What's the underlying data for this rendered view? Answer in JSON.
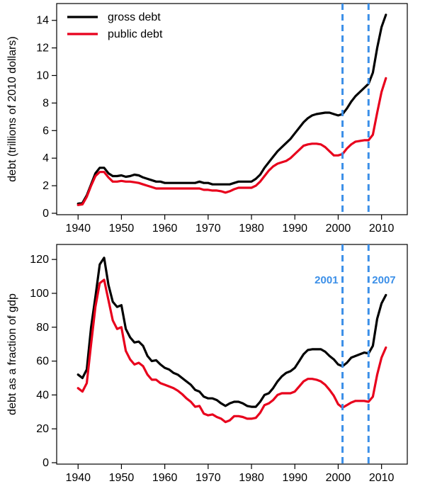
{
  "colors": {
    "gross": "#000000",
    "public": "#e8001c",
    "marker": "#3b8fe8",
    "axis": "#000000"
  },
  "chart_data": [
    {
      "type": "line",
      "title": "",
      "xlabel": "",
      "ylabel": "debt (trillions of 2010 dollars)",
      "xlim": [
        1938,
        2013
      ],
      "ylim": [
        0,
        14.5
      ],
      "xticks": [
        1940,
        1950,
        1960,
        1970,
        1980,
        1990,
        2000,
        2010
      ],
      "yticks": [
        0,
        2,
        4,
        6,
        8,
        10,
        12,
        14
      ],
      "grid": false,
      "legend_position": "top-left",
      "legend": [
        "gross debt",
        "public debt"
      ],
      "markers": [
        {
          "x": 2001,
          "label": ""
        },
        {
          "x": 2007,
          "label": ""
        }
      ],
      "series": [
        {
          "name": "gross debt",
          "color_key": "gross",
          "x": [
            1940,
            1941,
            1942,
            1943,
            1944,
            1945,
            1946,
            1947,
            1948,
            1949,
            1950,
            1951,
            1952,
            1953,
            1954,
            1955,
            1956,
            1957,
            1958,
            1959,
            1960,
            1961,
            1962,
            1963,
            1964,
            1965,
            1966,
            1967,
            1968,
            1969,
            1970,
            1971,
            1972,
            1973,
            1974,
            1975,
            1976,
            1977,
            1978,
            1979,
            1980,
            1981,
            1982,
            1983,
            1984,
            1985,
            1986,
            1987,
            1988,
            1989,
            1990,
            1991,
            1992,
            1993,
            1994,
            1995,
            1996,
            1997,
            1998,
            1999,
            2000,
            2001,
            2002,
            2003,
            2004,
            2005,
            2006,
            2007,
            2008,
            2009,
            2010,
            2011
          ],
          "values": [
            0.7,
            0.75,
            1.3,
            2.1,
            2.9,
            3.3,
            3.3,
            2.9,
            2.7,
            2.7,
            2.75,
            2.65,
            2.7,
            2.8,
            2.75,
            2.6,
            2.5,
            2.4,
            2.3,
            2.3,
            2.2,
            2.2,
            2.2,
            2.2,
            2.2,
            2.2,
            2.2,
            2.2,
            2.3,
            2.2,
            2.2,
            2.1,
            2.1,
            2.1,
            2.1,
            2.1,
            2.2,
            2.3,
            2.3,
            2.3,
            2.3,
            2.5,
            2.8,
            3.3,
            3.7,
            4.1,
            4.5,
            4.8,
            5.1,
            5.4,
            5.8,
            6.2,
            6.6,
            6.9,
            7.1,
            7.2,
            7.25,
            7.3,
            7.3,
            7.2,
            7.1,
            7.2,
            7.6,
            8.1,
            8.5,
            8.8,
            9.1,
            9.4,
            10.2,
            12.0,
            13.5,
            14.4
          ]
        },
        {
          "name": "public debt",
          "color_key": "public",
          "x": [
            1940,
            1941,
            1942,
            1943,
            1944,
            1945,
            1946,
            1947,
            1948,
            1949,
            1950,
            1951,
            1952,
            1953,
            1954,
            1955,
            1956,
            1957,
            1958,
            1959,
            1960,
            1961,
            1962,
            1963,
            1964,
            1965,
            1966,
            1967,
            1968,
            1969,
            1970,
            1971,
            1972,
            1973,
            1974,
            1975,
            1976,
            1977,
            1978,
            1979,
            1980,
            1981,
            1982,
            1983,
            1984,
            1985,
            1986,
            1987,
            1988,
            1989,
            1990,
            1991,
            1992,
            1993,
            1994,
            1995,
            1996,
            1997,
            1998,
            1999,
            2000,
            2001,
            2002,
            2003,
            2004,
            2005,
            2006,
            2007,
            2008,
            2009,
            2010,
            2011
          ],
          "values": [
            0.6,
            0.65,
            1.2,
            2.0,
            2.7,
            3.0,
            3.0,
            2.6,
            2.3,
            2.3,
            2.35,
            2.3,
            2.3,
            2.25,
            2.2,
            2.1,
            2.0,
            1.9,
            1.8,
            1.8,
            1.8,
            1.8,
            1.8,
            1.8,
            1.8,
            1.8,
            1.8,
            1.8,
            1.8,
            1.7,
            1.7,
            1.65,
            1.65,
            1.6,
            1.5,
            1.6,
            1.75,
            1.85,
            1.85,
            1.85,
            1.85,
            2.0,
            2.3,
            2.7,
            3.1,
            3.4,
            3.6,
            3.7,
            3.8,
            4.0,
            4.3,
            4.6,
            4.9,
            5.0,
            5.05,
            5.05,
            5.0,
            4.8,
            4.5,
            4.2,
            4.2,
            4.3,
            4.7,
            5.0,
            5.2,
            5.25,
            5.3,
            5.3,
            5.7,
            7.3,
            8.8,
            9.8
          ]
        }
      ]
    },
    {
      "type": "line",
      "title": "",
      "xlabel": "",
      "ylabel": "debt as a fraction of gdp",
      "xlim": [
        1938,
        2013
      ],
      "ylim": [
        0,
        123
      ],
      "xticks": [
        1940,
        1950,
        1960,
        1970,
        1980,
        1990,
        2000,
        2010
      ],
      "yticks": [
        0,
        20,
        40,
        60,
        80,
        100,
        120
      ],
      "grid": false,
      "markers": [
        {
          "x": 2001,
          "label": "2001"
        },
        {
          "x": 2007,
          "label": "2007"
        }
      ],
      "series": [
        {
          "name": "gross debt",
          "color_key": "gross",
          "x": [
            1940,
            1941,
            1942,
            1943,
            1944,
            1945,
            1946,
            1947,
            1948,
            1949,
            1950,
            1951,
            1952,
            1953,
            1954,
            1955,
            1956,
            1957,
            1958,
            1959,
            1960,
            1961,
            1962,
            1963,
            1964,
            1965,
            1966,
            1967,
            1968,
            1969,
            1970,
            1971,
            1972,
            1973,
            1974,
            1975,
            1976,
            1977,
            1978,
            1979,
            1980,
            1981,
            1982,
            1983,
            1984,
            1985,
            1986,
            1987,
            1988,
            1989,
            1990,
            1991,
            1992,
            1993,
            1994,
            1995,
            1996,
            1997,
            1998,
            1999,
            2000,
            2001,
            2002,
            2003,
            2004,
            2005,
            2006,
            2007,
            2008,
            2009,
            2010,
            2011
          ],
          "values": [
            52,
            50,
            55,
            80,
            98,
            117,
            121,
            105,
            95,
            92,
            93,
            79,
            74,
            71,
            71.5,
            69,
            63,
            60,
            60.5,
            58,
            56,
            55,
            53,
            52,
            50,
            48,
            46,
            43,
            42,
            39,
            38,
            38,
            37,
            35,
            33.5,
            35,
            36,
            36,
            35,
            33.5,
            33,
            33,
            36,
            40,
            41,
            44,
            48,
            51,
            53,
            54,
            56,
            60,
            64,
            66.5,
            67,
            67,
            67,
            65.5,
            63,
            61,
            58,
            57,
            59,
            62,
            63,
            64,
            65,
            64.5,
            69,
            85,
            94,
            99
          ]
        },
        {
          "name": "public debt",
          "color_key": "public",
          "x": [
            1940,
            1941,
            1942,
            1943,
            1944,
            1945,
            1946,
            1947,
            1948,
            1949,
            1950,
            1951,
            1952,
            1953,
            1954,
            1955,
            1956,
            1957,
            1958,
            1959,
            1960,
            1961,
            1962,
            1963,
            1964,
            1965,
            1966,
            1967,
            1968,
            1969,
            1970,
            1971,
            1972,
            1973,
            1974,
            1975,
            1976,
            1977,
            1978,
            1979,
            1980,
            1981,
            1982,
            1983,
            1984,
            1985,
            1986,
            1987,
            1988,
            1989,
            1990,
            1991,
            1992,
            1993,
            1994,
            1995,
            1996,
            1997,
            1998,
            1999,
            2000,
            2001,
            2002,
            2003,
            2004,
            2005,
            2006,
            2007,
            2008,
            2009,
            2010,
            2011
          ],
          "values": [
            44,
            42,
            47,
            70,
            92,
            106,
            108,
            96,
            84,
            79,
            80,
            66,
            61,
            58,
            59,
            57,
            52,
            49,
            49,
            47,
            46,
            45,
            44,
            42.5,
            40.5,
            38,
            36,
            33,
            33.5,
            29,
            28,
            28.5,
            27,
            26,
            24,
            25,
            27.5,
            27.5,
            27,
            26,
            26,
            26.5,
            29.5,
            34,
            35,
            37,
            40,
            41,
            41,
            41,
            42,
            45,
            48,
            49.5,
            49.5,
            49,
            48,
            46,
            43,
            39.5,
            34.5,
            32.5,
            34,
            35.5,
            36.5,
            36.5,
            36.5,
            36,
            39,
            52,
            62,
            68
          ]
        }
      ]
    }
  ]
}
